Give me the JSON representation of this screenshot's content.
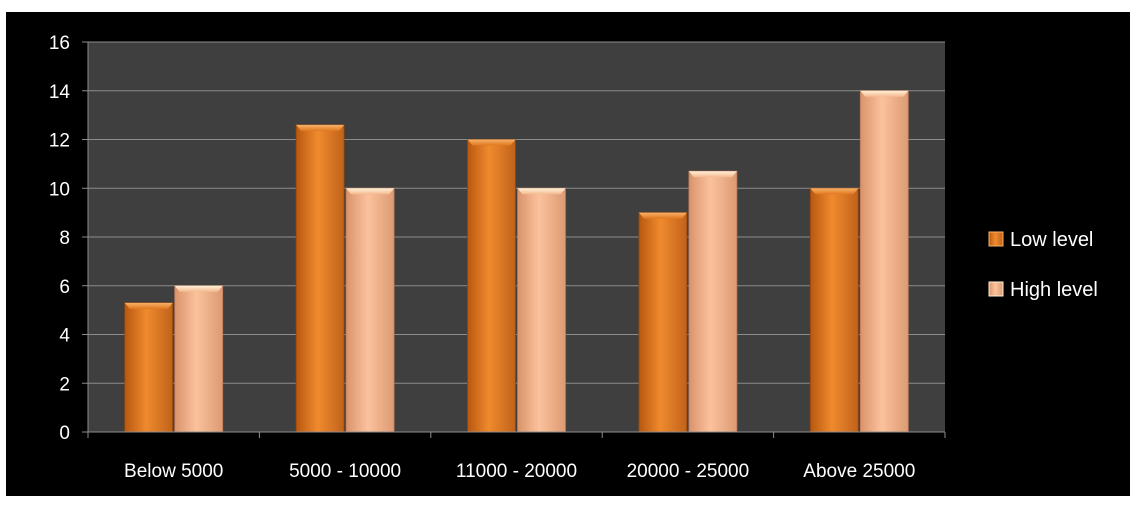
{
  "chart_data": {
    "type": "bar",
    "title": "",
    "xlabel": "",
    "ylabel": "",
    "categories": [
      "Below 5000",
      "5000 - 10000",
      "11000 - 20000",
      "20000 - 25000",
      "Above 25000"
    ],
    "series": [
      {
        "name": "Low level",
        "values": [
          5.3,
          12.6,
          12.0,
          9.0,
          10.0
        ],
        "color": "#E8832A"
      },
      {
        "name": "High level",
        "values": [
          6.0,
          10.0,
          10.0,
          10.7,
          14.0
        ],
        "color": "#F6B58A"
      }
    ],
    "ylim": [
      0,
      16
    ],
    "yticks": [
      "0",
      "2",
      "4",
      "6",
      "8",
      "10",
      "12",
      "14",
      "16"
    ],
    "grid": true,
    "legend_position": "right",
    "colors": {
      "background": "#000000",
      "plot_area": "#3F3F3F",
      "gridline": "#8C8C8C",
      "text": "#FFFFFF"
    }
  }
}
